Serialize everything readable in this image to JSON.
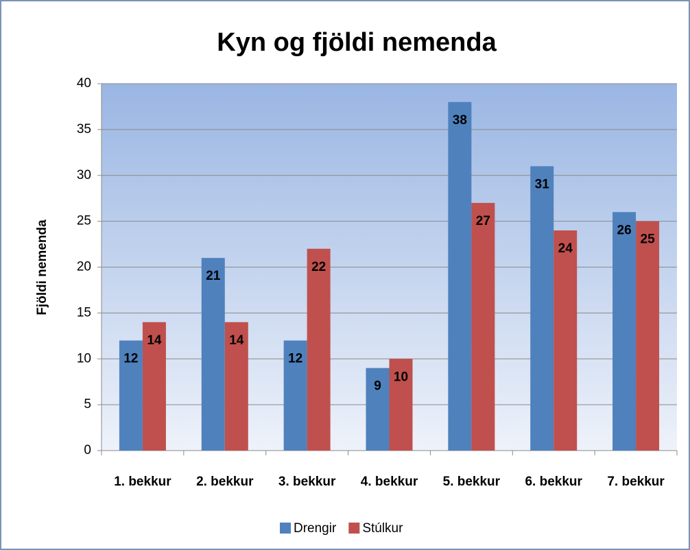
{
  "chart_data": {
    "type": "bar",
    "title": "Kyn og fjöldi nemenda",
    "y_label": "Fjöldi nemenda",
    "categories": [
      "1. bekkur",
      "2. bekkur",
      "3. bekkur",
      "4. bekkur",
      "5. bekkur",
      "6. bekkur",
      "7. bekkur"
    ],
    "series": [
      {
        "name": "Drengir",
        "color": "#4f81bd",
        "values": [
          12,
          21,
          12,
          9,
          38,
          31,
          26
        ]
      },
      {
        "name": "Stúlkur",
        "color": "#c0504d",
        "values": [
          14,
          14,
          22,
          10,
          27,
          24,
          25
        ]
      }
    ],
    "ylim": [
      0,
      40
    ],
    "yticks": [
      0,
      5,
      10,
      15,
      20,
      25,
      30,
      35,
      40
    ],
    "grid": true,
    "legend": "bottom"
  }
}
